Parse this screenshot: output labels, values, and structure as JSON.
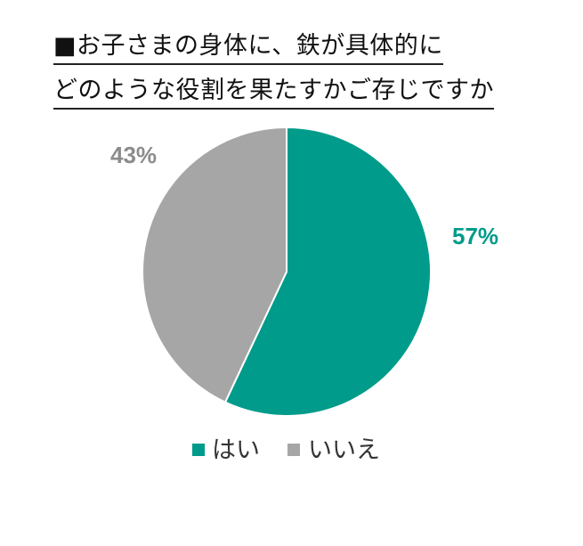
{
  "chart_data": {
    "type": "pie",
    "title_lines": [
      "■お子さまの身体に、鉄が具体的に",
      "どのような役割を果たすかご存じですか"
    ],
    "categories": [
      "はい",
      "いいえ"
    ],
    "values": [
      57,
      43
    ],
    "value_labels": [
      "57%",
      "43%"
    ],
    "colors": [
      "#009B8A",
      "#A6A6A6"
    ],
    "label_colors": [
      "#009B8A",
      "#8C8C8C"
    ],
    "start_angle_deg": 0,
    "direction": "clockwise",
    "legend_position": "bottom"
  }
}
